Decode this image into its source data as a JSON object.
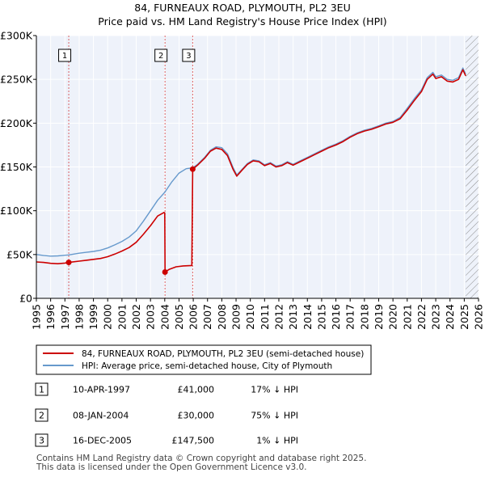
{
  "title": {
    "line1": "84, FURNEAUX ROAD, PLYMOUTH, PL2 3EU",
    "line2": "Price paid vs. HM Land Registry's House Price Index (HPI)"
  },
  "chart_data": {
    "type": "line",
    "title": "84, FURNEAUX ROAD, PLYMOUTH, PL2 3EU - Price paid vs. HM Land Registry's House Price Index (HPI)",
    "xlabel": "",
    "ylabel": "",
    "xlim": [
      1995,
      2026
    ],
    "ylim": [
      0,
      300000
    ],
    "x_ticks": [
      1995,
      1996,
      1997,
      1998,
      1999,
      2000,
      2001,
      2002,
      2003,
      2004,
      2005,
      2006,
      2007,
      2008,
      2009,
      2010,
      2011,
      2012,
      2013,
      2014,
      2015,
      2016,
      2017,
      2018,
      2019,
      2020,
      2021,
      2022,
      2023,
      2024,
      2025,
      2026
    ],
    "y_ticks": [
      0,
      50000,
      100000,
      150000,
      200000,
      250000,
      300000
    ],
    "y_tick_labels": [
      "£0",
      "£50K",
      "£100K",
      "£150K",
      "£200K",
      "£250K",
      "£300K"
    ],
    "grid": true,
    "series": [
      {
        "name": "84, FURNEAUX ROAD, PLYMOUTH, PL2 3EU (semi-detached house)",
        "color": "#cc0000",
        "points": [
          [
            1995.0,
            41500
          ],
          [
            1995.5,
            41000
          ],
          [
            1996.0,
            40000
          ],
          [
            1996.5,
            39500
          ],
          [
            1997.0,
            40200
          ],
          [
            1997.27,
            41000
          ],
          [
            1998.0,
            42500
          ],
          [
            1998.5,
            43500
          ],
          [
            1999.0,
            44500
          ],
          [
            1999.5,
            45500
          ],
          [
            2000.0,
            47500
          ],
          [
            2000.5,
            50500
          ],
          [
            2001.0,
            54000
          ],
          [
            2001.5,
            58000
          ],
          [
            2002.0,
            64000
          ],
          [
            2002.5,
            73000
          ],
          [
            2003.0,
            83000
          ],
          [
            2003.5,
            94000
          ],
          [
            2003.95,
            98000
          ],
          [
            2004.0,
            97500
          ],
          [
            2004.02,
            30000
          ],
          [
            2004.3,
            33000
          ],
          [
            2004.8,
            36000
          ],
          [
            2005.3,
            37000
          ],
          [
            2005.9,
            37500
          ],
          [
            2005.96,
            147500
          ],
          [
            2006.3,
            152000
          ],
          [
            2006.8,
            160000
          ],
          [
            2007.2,
            168000
          ],
          [
            2007.6,
            171500
          ],
          [
            2008.0,
            170000
          ],
          [
            2008.4,
            163000
          ],
          [
            2008.8,
            147000
          ],
          [
            2009.05,
            139500
          ],
          [
            2009.4,
            146000
          ],
          [
            2009.8,
            153000
          ],
          [
            2010.2,
            157000
          ],
          [
            2010.6,
            156000
          ],
          [
            2011.0,
            151500
          ],
          [
            2011.4,
            154000
          ],
          [
            2011.8,
            150000
          ],
          [
            2012.2,
            151500
          ],
          [
            2012.6,
            155000
          ],
          [
            2013.0,
            152000
          ],
          [
            2013.5,
            156000
          ],
          [
            2014.0,
            160000
          ],
          [
            2014.5,
            164000
          ],
          [
            2015.0,
            168000
          ],
          [
            2015.5,
            172000
          ],
          [
            2016.0,
            175000
          ],
          [
            2016.5,
            179000
          ],
          [
            2017.0,
            184000
          ],
          [
            2017.5,
            188000
          ],
          [
            2018.0,
            191000
          ],
          [
            2018.5,
            193000
          ],
          [
            2019.0,
            196000
          ],
          [
            2019.5,
            199000
          ],
          [
            2020.0,
            201000
          ],
          [
            2020.5,
            205000
          ],
          [
            2021.0,
            215000
          ],
          [
            2021.5,
            226000
          ],
          [
            2022.0,
            236000
          ],
          [
            2022.4,
            250000
          ],
          [
            2022.8,
            256000
          ],
          [
            2023.0,
            251000
          ],
          [
            2023.4,
            253000
          ],
          [
            2023.8,
            248000
          ],
          [
            2024.2,
            247000
          ],
          [
            2024.6,
            250000
          ],
          [
            2024.9,
            261000
          ],
          [
            2025.1,
            254000
          ]
        ]
      },
      {
        "name": "HPI: Average price, semi-detached house, City of Plymouth",
        "color": "#6699cc",
        "points": [
          [
            1995.0,
            50000
          ],
          [
            1995.5,
            49000
          ],
          [
            1996.0,
            48200
          ],
          [
            1996.5,
            48500
          ],
          [
            1997.0,
            49200
          ],
          [
            1997.27,
            49600
          ],
          [
            1998.0,
            51500
          ],
          [
            1998.5,
            52500
          ],
          [
            1999.0,
            53500
          ],
          [
            1999.5,
            55000
          ],
          [
            2000.0,
            57500
          ],
          [
            2000.5,
            61000
          ],
          [
            2001.0,
            65000
          ],
          [
            2001.5,
            70000
          ],
          [
            2002.0,
            77000
          ],
          [
            2002.5,
            88000
          ],
          [
            2003.0,
            100000
          ],
          [
            2003.5,
            112000
          ],
          [
            2004.0,
            121000
          ],
          [
            2004.5,
            133000
          ],
          [
            2005.0,
            143000
          ],
          [
            2005.5,
            148000
          ],
          [
            2005.96,
            149000
          ],
          [
            2006.3,
            153000
          ],
          [
            2006.8,
            161000
          ],
          [
            2007.2,
            169000
          ],
          [
            2007.6,
            173000
          ],
          [
            2008.0,
            172000
          ],
          [
            2008.4,
            165000
          ],
          [
            2008.8,
            149000
          ],
          [
            2009.05,
            141000
          ],
          [
            2009.4,
            147000
          ],
          [
            2009.8,
            154000
          ],
          [
            2010.2,
            158000
          ],
          [
            2010.6,
            157000
          ],
          [
            2011.0,
            152500
          ],
          [
            2011.4,
            155000
          ],
          [
            2011.8,
            151000
          ],
          [
            2012.2,
            152500
          ],
          [
            2012.6,
            156000
          ],
          [
            2013.0,
            153000
          ],
          [
            2013.5,
            157000
          ],
          [
            2014.0,
            161000
          ],
          [
            2014.5,
            165000
          ],
          [
            2015.0,
            169000
          ],
          [
            2015.5,
            173000
          ],
          [
            2016.0,
            176000
          ],
          [
            2016.5,
            180000
          ],
          [
            2017.0,
            185000
          ],
          [
            2017.5,
            189000
          ],
          [
            2018.0,
            192000
          ],
          [
            2018.5,
            194000
          ],
          [
            2019.0,
            197000
          ],
          [
            2019.5,
            200000
          ],
          [
            2020.0,
            202000
          ],
          [
            2020.5,
            206500
          ],
          [
            2021.0,
            217000
          ],
          [
            2021.5,
            228000
          ],
          [
            2022.0,
            238000
          ],
          [
            2022.4,
            252000
          ],
          [
            2022.8,
            258000
          ],
          [
            2023.0,
            253000
          ],
          [
            2023.4,
            255000
          ],
          [
            2023.8,
            250000
          ],
          [
            2024.2,
            249000
          ],
          [
            2024.6,
            252000
          ],
          [
            2024.9,
            263000
          ],
          [
            2025.1,
            256000
          ]
        ]
      }
    ],
    "sales": [
      {
        "label": "1",
        "x": 1997.27,
        "price": 41000
      },
      {
        "label": "2",
        "x": 2004.02,
        "price": 30000
      },
      {
        "label": "3",
        "x": 2005.96,
        "price": 147500
      }
    ],
    "data_end_year": 2025.1
  },
  "legend": {
    "items": [
      {
        "label": "84, FURNEAUX ROAD, PLYMOUTH, PL2 3EU (semi-detached house)",
        "color": "#cc0000"
      },
      {
        "label": "HPI: Average price, semi-detached house, City of Plymouth",
        "color": "#6699cc"
      }
    ]
  },
  "transactions": [
    {
      "num": "1",
      "date": "10-APR-1997",
      "price": "£41,000",
      "hpi": "17% ↓ HPI"
    },
    {
      "num": "2",
      "date": "08-JAN-2004",
      "price": "£30,000",
      "hpi": "75% ↓ HPI"
    },
    {
      "num": "3",
      "date": "16-DEC-2005",
      "price": "£147,500",
      "hpi": "1% ↓ HPI"
    }
  ],
  "footer": {
    "line1": "Contains HM Land Registry data © Crown copyright and database right 2025.",
    "line2": "This data is licensed under the Open Government Licence v3.0."
  },
  "colors": {
    "plot_background": "#eef2fa",
    "grid": "#ffffff",
    "marker_line": "#cc0000",
    "hatch": "#888888"
  }
}
